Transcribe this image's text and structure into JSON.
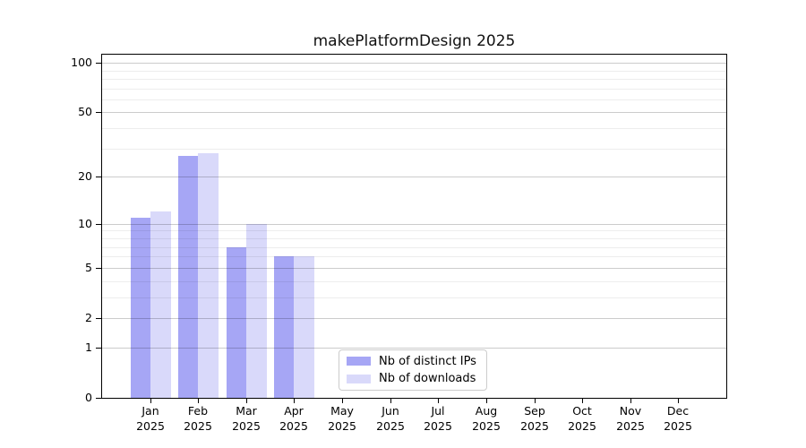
{
  "title": "makePlatformDesign 2025",
  "chart_data": {
    "type": "bar",
    "title": "makePlatformDesign 2025",
    "categories": [
      "Jan",
      "Feb",
      "Mar",
      "Apr",
      "May",
      "Jun",
      "Jul",
      "Aug",
      "Sep",
      "Oct",
      "Nov",
      "Dec"
    ],
    "category_year": "2025",
    "series": [
      {
        "name": "Nb of distinct IPs",
        "color": "#a6a6f5",
        "values": [
          11,
          27,
          7,
          6,
          0,
          0,
          0,
          0,
          0,
          0,
          0,
          0
        ]
      },
      {
        "name": "Nb of downloads",
        "color": "#d9d9fa",
        "values": [
          12,
          28,
          10,
          6,
          0,
          0,
          0,
          0,
          0,
          0,
          0,
          0
        ]
      }
    ],
    "y_axis": {
      "scale": "log10(1+y)",
      "major_ticks": [
        100,
        50,
        20,
        10,
        5,
        2,
        1,
        0
      ],
      "minor_ticks": [
        3,
        4,
        6,
        7,
        8,
        9,
        30,
        40,
        60,
        70,
        80,
        90
      ],
      "max": 112
    },
    "xlabel": "",
    "ylabel": "",
    "grid": true,
    "legend_position": "lower center"
  },
  "legend": {
    "items": [
      {
        "label": "Nb of distinct IPs",
        "color": "#a6a6f5"
      },
      {
        "label": "Nb of downloads",
        "color": "#d9d9fa"
      }
    ]
  }
}
